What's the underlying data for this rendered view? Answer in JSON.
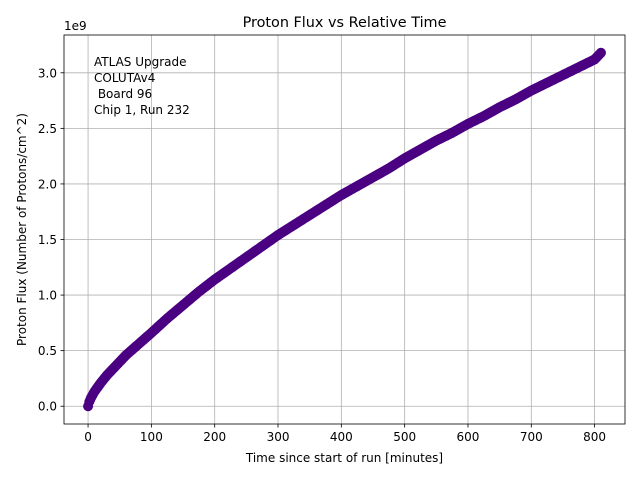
{
  "chart_data": {
    "type": "scatter",
    "title": "Proton Flux vs Relative Time",
    "xlabel": "Time since start of run [minutes]",
    "ylabel": "Proton Flux (Number of Protons/cm^2)",
    "y_offset_label": "1e9",
    "grid": true,
    "xlim": [
      -38,
      848
    ],
    "ylim": [
      -0.16,
      3.34
    ],
    "x_ticks": [
      0,
      100,
      200,
      300,
      400,
      500,
      600,
      700,
      800
    ],
    "x_tick_labels": [
      "0",
      "100",
      "200",
      "300",
      "400",
      "500",
      "600",
      "700",
      "800"
    ],
    "y_ticks": [
      0.0,
      0.5,
      1.0,
      1.5,
      2.0,
      2.5,
      3.0
    ],
    "y_tick_labels": [
      "0.0",
      "0.5",
      "1.0",
      "1.5",
      "2.0",
      "2.5",
      "3.0"
    ],
    "annotation_lines": [
      "ATLAS Upgrade",
      "COLUTAv4",
      " Board 96",
      "Chip 1, Run 232"
    ],
    "series": [
      {
        "name": "Proton Flux",
        "color": "#4b0082",
        "x": [
          0,
          2,
          5,
          10,
          15,
          20,
          30,
          40,
          50,
          60,
          80,
          100,
          125,
          150,
          175,
          200,
          225,
          250,
          275,
          300,
          325,
          350,
          375,
          400,
          425,
          450,
          475,
          500,
          525,
          550,
          575,
          600,
          625,
          650,
          675,
          700,
          725,
          750,
          775,
          800,
          810
        ],
        "y": [
          0.0,
          0.04,
          0.08,
          0.13,
          0.17,
          0.21,
          0.28,
          0.34,
          0.4,
          0.46,
          0.56,
          0.66,
          0.79,
          0.91,
          1.03,
          1.14,
          1.24,
          1.34,
          1.44,
          1.54,
          1.63,
          1.72,
          1.81,
          1.9,
          1.98,
          2.06,
          2.14,
          2.23,
          2.31,
          2.39,
          2.46,
          2.54,
          2.61,
          2.69,
          2.76,
          2.84,
          2.91,
          2.98,
          3.05,
          3.12,
          3.18
        ]
      }
    ]
  }
}
